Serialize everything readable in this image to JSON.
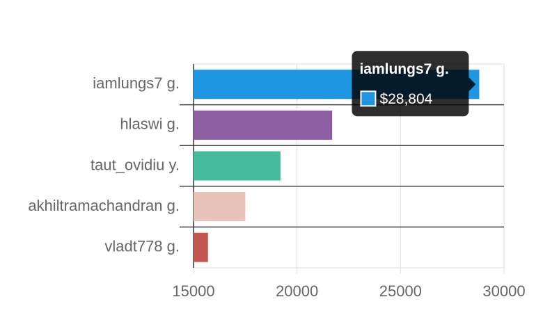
{
  "chart_data": {
    "type": "hbar",
    "categories": [
      "iamlungs7 g.",
      "hlaswi g.",
      "taut_ovidiu y.",
      "akhiltramachandran g.",
      "vladt778 g."
    ],
    "values": [
      28804,
      21700,
      19200,
      17500,
      15700
    ],
    "value_labels": [
      "$28,804",
      null,
      null,
      null,
      null
    ],
    "colors": [
      "#1f96e2",
      "#8e5ea2",
      "#45bc9d",
      "#e8c3b9",
      "#c45850"
    ],
    "xlim": [
      15000,
      30000
    ],
    "xticks": [
      15000,
      20000,
      25000,
      30000
    ],
    "grid": true,
    "tooltip": "iamlungs7 g."
  }
}
